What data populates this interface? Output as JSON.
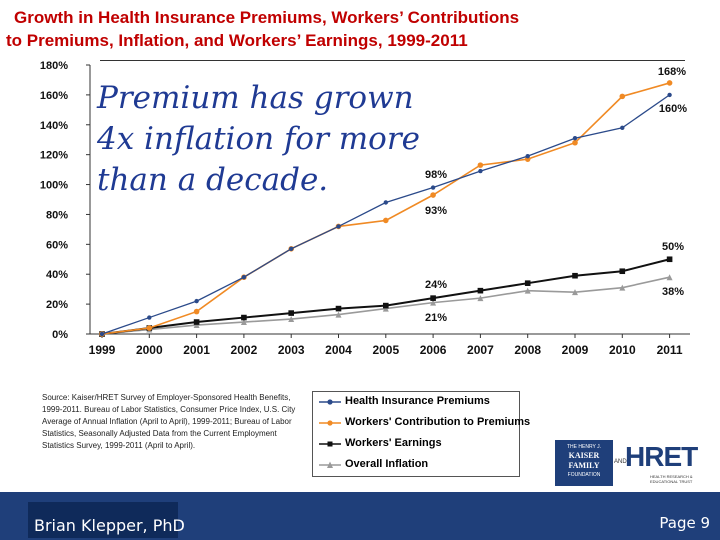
{
  "slide": {
    "title_line1": "Growth in Health Insurance Premiums, Workers’ Contributions",
    "title_line2": "to Premiums, Inflation, and Workers’ Earnings, 1999-2011",
    "callout": "Premium has grown 4x inflation for more than a decade.",
    "source": "Source: Kaiser/HRET Survey of Employer-Sponsored Health Benefits, 1999-2011. Bureau of Labor Statistics, Consumer Price Index, U.S. City Average of Annual Inflation (April to April), 1999-2011; Bureau of Labor Statistics, Seasonally Adjusted Data from the Current Employment Statistics Survey, 1999-2011 (April to April).",
    "author": "Brian Klepper, PhD",
    "page": "Page 9",
    "logo_kff_line1": "THE HENRY J.",
    "logo_kff_line2": "KAISER FAMILY",
    "logo_kff_line3": "FOUNDATION",
    "logo_and": "AND",
    "logo_hret": "HRET",
    "logo_hret_sub": "HEALTH RESEARCH & EDUCATIONAL TRUST"
  },
  "colors": {
    "title": "#c00000",
    "callout": "#1f3a93",
    "premiums": "#2b4a8a",
    "contributions": "#f08a24",
    "earnings": "#111111",
    "inflation": "#9a9a9a",
    "footer": "#1f3f7a"
  },
  "chart_data": {
    "type": "line",
    "x": [
      "1999",
      "2000",
      "2001",
      "2002",
      "2003",
      "2004",
      "2005",
      "2006",
      "2007",
      "2008",
      "2009",
      "2010",
      "2011"
    ],
    "ylim": [
      0,
      180
    ],
    "yticks": [
      "0%",
      "20%",
      "40%",
      "60%",
      "80%",
      "100%",
      "120%",
      "140%",
      "160%",
      "180%"
    ],
    "series": [
      {
        "name": "Health Insurance Premiums",
        "values": [
          0,
          11,
          22,
          38,
          57,
          72,
          88,
          98,
          109,
          119,
          131,
          138,
          160
        ]
      },
      {
        "name": "Workers' Contribution to Premiums",
        "values": [
          0,
          4,
          15,
          38,
          57,
          72,
          76,
          93,
          113,
          117,
          128,
          159,
          168
        ]
      },
      {
        "name": "Workers' Earnings",
        "values": [
          0,
          4,
          8,
          11,
          14,
          17,
          19,
          24,
          29,
          34,
          39,
          42,
          50
        ]
      },
      {
        "name": "Overall Inflation",
        "values": [
          0,
          3,
          6,
          8,
          10,
          13,
          17,
          21,
          24,
          29,
          28,
          31,
          38
        ]
      }
    ],
    "annotations": [
      "168%",
      "160%",
      "98%",
      "93%",
      "50%",
      "38%",
      "24%",
      "21%"
    ],
    "grid": false,
    "legend": "bottom"
  }
}
